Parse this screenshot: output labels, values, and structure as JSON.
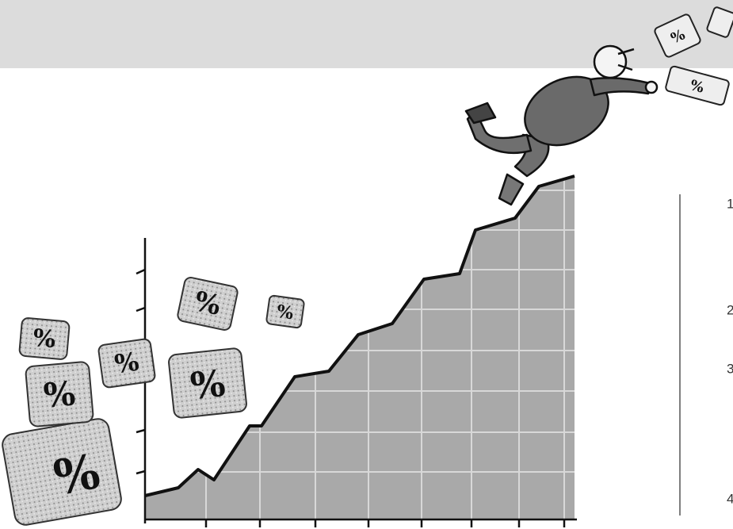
{
  "dice_labels": [
    "%",
    "%",
    "%",
    "%",
    "%",
    "%",
    "%",
    "%",
    "%"
  ],
  "side_numbers": [
    "1",
    "2",
    "3",
    "4"
  ]
}
